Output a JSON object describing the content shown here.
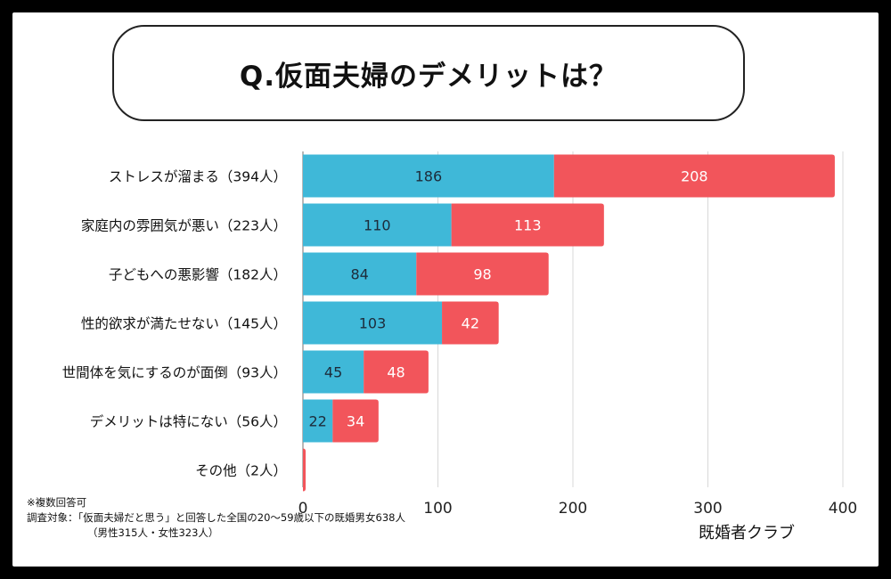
{
  "title": "Q.仮面夫婦のデメリットは？",
  "notes": {
    "line1": "※複数回答可",
    "line2": "調査対象：「仮面夫婦だと思う」と回答した全国の20〜59歳以下の既婚男女638人",
    "line3": "（男性315人・女性323人）"
  },
  "brand": "既婚者クラブ",
  "colors": {
    "male": "#3FB8D8",
    "female": "#F2555B",
    "grid": "#D8D8D8",
    "axis": "#888888"
  },
  "chart_data": {
    "type": "bar",
    "orientation": "horizontal",
    "stacked": true,
    "title": "Q.仮面夫婦のデメリットは？",
    "categories": [
      "ストレスが溜まる（394人）",
      "家庭内の雰囲気が悪い（223人）",
      "子どもへの悪影響（182人）",
      "性的欲求が満たせない（145人）",
      "世間体を気にするのが面倒（93人）",
      "デメリットは特にない（56人）",
      "その他（2人）"
    ],
    "series": [
      {
        "values": [
          186,
          110,
          84,
          103,
          45,
          22,
          0
        ]
      },
      {
        "values": [
          208,
          113,
          98,
          42,
          48,
          34,
          2
        ]
      }
    ],
    "show_value_labels": [
      [
        true,
        true,
        true,
        true,
        true,
        true,
        false
      ],
      [
        true,
        true,
        true,
        true,
        true,
        true,
        false
      ]
    ],
    "xlim": [
      0,
      400
    ],
    "xticks": [
      0,
      100,
      200,
      300,
      400
    ],
    "grid": true,
    "legend": "none"
  }
}
